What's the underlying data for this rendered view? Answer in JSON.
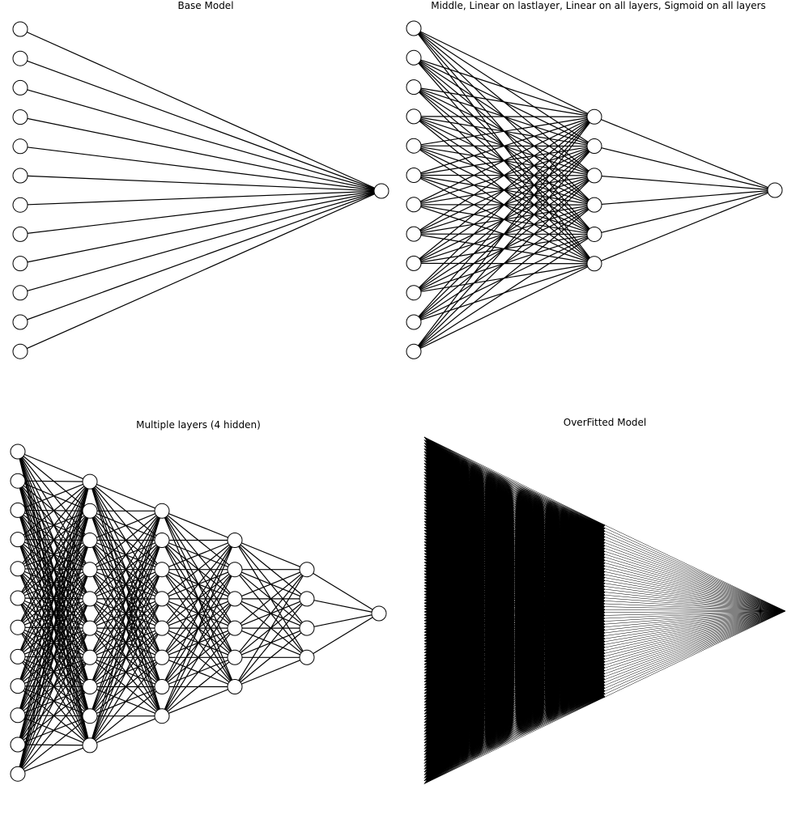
{
  "panels": [
    {
      "title": "Base Model",
      "layers": [
        12,
        1
      ]
    },
    {
      "title": "Middle, Linear on lastlayer, Linear on all layers, Sigmoid on all layers",
      "layers": [
        12,
        6,
        1
      ]
    },
    {
      "title": "Multiple layers (4 hidden)",
      "layers": [
        12,
        10,
        8,
        6,
        4,
        1
      ]
    },
    {
      "title": "OverFitted Model",
      "layers": [
        120,
        60,
        1
      ]
    }
  ],
  "colors": {
    "edge": "#000000",
    "node_fill": "#ffffff",
    "node_stroke": "#000000"
  }
}
